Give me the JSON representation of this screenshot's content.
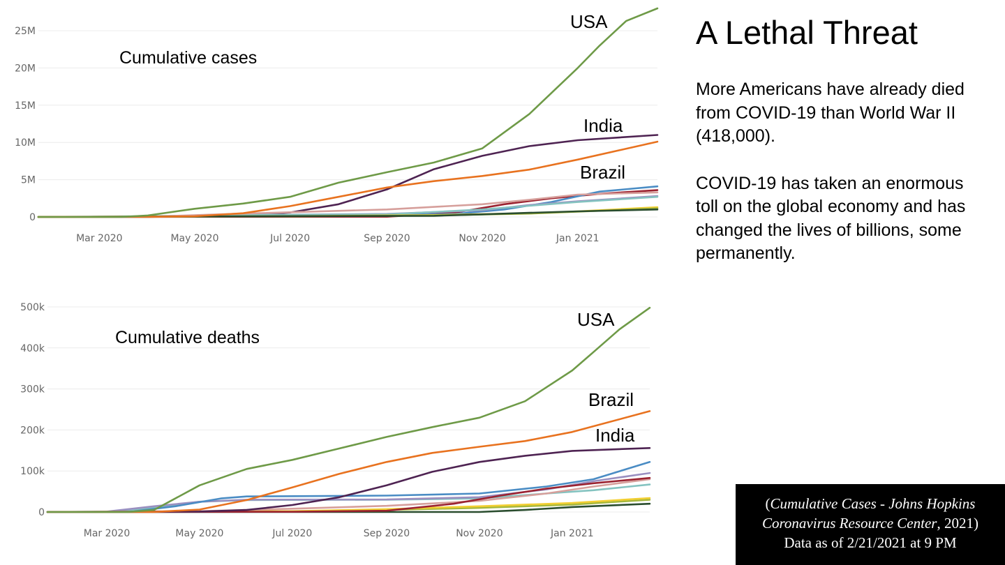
{
  "headline": "A Lethal Threat",
  "paragraph1": "More Americans have already died from COVID-19 than World War II (418,000).",
  "paragraph2": "COVID-19 has taken an enormous toll on the global economy and has changed the lives of billions, some permanently.",
  "source": {
    "line1_open": "(",
    "line1_italic": "Cumulative Cases - Johns Hopkins",
    "line2_italic": "Coronavirus Resource Center",
    "line2_rest": ", 2021)",
    "line3": "Data as of 2/21/2021 at 9 PM"
  },
  "colors": {
    "usa": "#6e9a47",
    "india": "#4e2352",
    "brazil": "#e8721f",
    "blue": "#4a8cc4",
    "pink": "#d69f9b",
    "purple": "#9a8fc0",
    "teal": "#84c3c0",
    "maroon": "#9b2230",
    "gold": "#f2cf32",
    "olive": "#a5b73c",
    "darkgreen": "#2a4d2e"
  },
  "chart_data": [
    {
      "type": "line",
      "title": "Cumulative cases",
      "x_ticks": [
        "Mar 2020",
        "May 2020",
        "Jul 2020",
        "Sep 2020",
        "Nov 2020",
        "Jan 2021"
      ],
      "x_tick_dates": [
        "2020-03-01",
        "2020-05-01",
        "2020-07-01",
        "2020-09-01",
        "2020-11-01",
        "2021-01-01"
      ],
      "xlim": [
        "2020-01-22",
        "2021-02-21"
      ],
      "y_ticks": [
        "0",
        "5M",
        "10M",
        "15M",
        "20M",
        "25M"
      ],
      "y_tick_values": [
        0,
        5000000,
        10000000,
        15000000,
        20000000,
        25000000
      ],
      "ylim": [
        0,
        28500000
      ],
      "grid": true,
      "annotations": [
        "USA",
        "India",
        "Brazil"
      ],
      "series": [
        {
          "color_key": "usa",
          "x": [
            "2020-01-22",
            "2020-03-15",
            "2020-04-01",
            "2020-05-01",
            "2020-06-01",
            "2020-07-01",
            "2020-08-01",
            "2020-09-01",
            "2020-10-01",
            "2020-11-01",
            "2020-12-01",
            "2021-01-01",
            "2021-01-15",
            "2021-02-01",
            "2021-02-21"
          ],
          "y": [
            0,
            3000,
            200000,
            1100000,
            1800000,
            2700000,
            4600000,
            6000000,
            7300000,
            9200000,
            13800000,
            20000000,
            23000000,
            26300000,
            28000000
          ]
        },
        {
          "color_key": "india",
          "x": [
            "2020-01-22",
            "2020-05-01",
            "2020-06-01",
            "2020-07-01",
            "2020-08-01",
            "2020-09-01",
            "2020-10-01",
            "2020-11-01",
            "2020-12-01",
            "2021-01-01",
            "2021-02-21"
          ],
          "y": [
            0,
            35000,
            200000,
            600000,
            1700000,
            3700000,
            6400000,
            8200000,
            9500000,
            10300000,
            11000000
          ]
        },
        {
          "color_key": "brazil",
          "x": [
            "2020-01-22",
            "2020-04-01",
            "2020-05-01",
            "2020-06-01",
            "2020-07-01",
            "2020-08-01",
            "2020-09-01",
            "2020-10-01",
            "2020-11-01",
            "2020-12-01",
            "2021-01-01",
            "2021-02-21"
          ],
          "y": [
            0,
            6000,
            90000,
            500000,
            1450000,
            2700000,
            3950000,
            4800000,
            5500000,
            6350000,
            7700000,
            10100000
          ]
        },
        {
          "color_key": "blue",
          "x": [
            "2020-01-22",
            "2020-04-01",
            "2020-06-01",
            "2020-09-01",
            "2020-10-15",
            "2020-11-15",
            "2020-12-15",
            "2021-01-15",
            "2021-02-21"
          ],
          "y": [
            0,
            3000,
            300000,
            300000,
            400000,
            1000000,
            2000000,
            3400000,
            4100000
          ]
        },
        {
          "color_key": "pink",
          "x": [
            "2020-01-22",
            "2020-04-01",
            "2020-06-01",
            "2020-09-01",
            "2020-11-01",
            "2020-12-01",
            "2021-01-01",
            "2021-02-21"
          ],
          "y": [
            0,
            30000,
            450000,
            1000000,
            1700000,
            2300000,
            3000000,
            3300000
          ]
        },
        {
          "color_key": "maroon",
          "x": [
            "2020-01-22",
            "2020-09-01",
            "2020-10-15",
            "2020-11-15",
            "2020-12-15",
            "2021-01-15",
            "2021-02-21"
          ],
          "y": [
            0,
            30000,
            600000,
            1700000,
            2500000,
            3100000,
            3600000
          ]
        },
        {
          "color_key": "purple",
          "x": [
            "2020-01-22",
            "2020-04-01",
            "2020-06-01",
            "2020-09-01",
            "2020-11-01",
            "2020-12-01",
            "2021-01-01",
            "2021-02-21"
          ],
          "y": [
            0,
            40000,
            250000,
            400000,
            900000,
            1600000,
            2100000,
            2800000
          ]
        },
        {
          "color_key": "teal",
          "x": [
            "2020-01-22",
            "2020-04-01",
            "2020-06-01",
            "2020-09-01",
            "2020-11-01",
            "2020-12-01",
            "2021-01-01",
            "2021-02-21"
          ],
          "y": [
            0,
            100000,
            250000,
            350000,
            1000000,
            1500000,
            2000000,
            2700000
          ]
        },
        {
          "color_key": "gold",
          "x": [
            "2020-01-22",
            "2020-07-01",
            "2020-10-01",
            "2020-12-01",
            "2021-01-01",
            "2021-02-21"
          ],
          "y": [
            0,
            100000,
            250000,
            500000,
            750000,
            1300000
          ]
        },
        {
          "color_key": "olive",
          "x": [
            "2020-01-22",
            "2020-07-01",
            "2020-10-01",
            "2020-12-01",
            "2021-01-01",
            "2021-02-21"
          ],
          "y": [
            0,
            80000,
            200000,
            450000,
            700000,
            1150000
          ]
        },
        {
          "color_key": "darkgreen",
          "x": [
            "2020-01-22",
            "2020-10-01",
            "2020-11-01",
            "2020-12-01",
            "2021-01-01",
            "2021-02-21"
          ],
          "y": [
            0,
            150000,
            350000,
            550000,
            750000,
            1000000
          ]
        }
      ]
    },
    {
      "type": "line",
      "title": "Cumulative deaths",
      "x_ticks": [
        "Mar 2020",
        "May 2020",
        "Jul 2020",
        "Sep 2020",
        "Nov 2020",
        "Jan 2021"
      ],
      "x_tick_dates": [
        "2020-03-01",
        "2020-05-01",
        "2020-07-01",
        "2020-09-01",
        "2020-11-01",
        "2021-01-01"
      ],
      "xlim": [
        "2020-01-22",
        "2021-02-21"
      ],
      "y_ticks": [
        "0",
        "100k",
        "200k",
        "300k",
        "400k",
        "500k"
      ],
      "y_tick_values": [
        0,
        100000,
        200000,
        300000,
        400000,
        500000
      ],
      "ylim": [
        0,
        515000
      ],
      "grid": true,
      "annotations": [
        "USA",
        "Brazil",
        "India"
      ],
      "series": [
        {
          "color_key": "usa",
          "x": [
            "2020-01-22",
            "2020-03-15",
            "2020-04-01",
            "2020-05-01",
            "2020-06-01",
            "2020-07-01",
            "2020-08-01",
            "2020-09-01",
            "2020-10-01",
            "2020-11-01",
            "2020-12-01",
            "2021-01-01",
            "2021-01-15",
            "2021-02-01",
            "2021-02-21"
          ],
          "y": [
            0,
            100,
            5000,
            65000,
            105000,
            127000,
            155000,
            183000,
            207000,
            230000,
            270000,
            345000,
            390000,
            445000,
            498000
          ]
        },
        {
          "color_key": "brazil",
          "x": [
            "2020-01-22",
            "2020-04-01",
            "2020-05-01",
            "2020-06-01",
            "2020-07-01",
            "2020-08-01",
            "2020-09-01",
            "2020-10-01",
            "2020-11-01",
            "2020-12-01",
            "2021-01-01",
            "2021-02-21"
          ],
          "y": [
            0,
            200,
            6000,
            29000,
            60000,
            93000,
            122000,
            144000,
            159000,
            173000,
            195000,
            246000
          ]
        },
        {
          "color_key": "india",
          "x": [
            "2020-01-22",
            "2020-05-01",
            "2020-06-01",
            "2020-07-01",
            "2020-08-01",
            "2020-09-01",
            "2020-10-01",
            "2020-11-01",
            "2020-12-01",
            "2021-01-01",
            "2021-02-21"
          ],
          "y": [
            0,
            1000,
            5000,
            17000,
            36000,
            65000,
            98000,
            122000,
            137000,
            149000,
            156000
          ]
        },
        {
          "color_key": "blue",
          "x": [
            "2020-01-22",
            "2020-03-15",
            "2020-04-15",
            "2020-05-15",
            "2020-06-01",
            "2020-09-01",
            "2020-11-01",
            "2020-12-15",
            "2021-01-15",
            "2021-02-21"
          ],
          "y": [
            0,
            0,
            14000,
            33000,
            38000,
            40000,
            45000,
            62000,
            80000,
            122000
          ]
        },
        {
          "color_key": "purple",
          "x": [
            "2020-01-22",
            "2020-03-01",
            "2020-04-01",
            "2020-05-01",
            "2020-06-01",
            "2020-09-01",
            "2020-11-01",
            "2020-12-15",
            "2021-01-15",
            "2021-02-21"
          ],
          "y": [
            0,
            1000,
            14000,
            25000,
            30000,
            30500,
            36000,
            55000,
            75000,
            95000
          ]
        },
        {
          "color_key": "teal",
          "x": [
            "2020-01-22",
            "2020-03-01",
            "2020-04-01",
            "2020-05-01",
            "2020-06-01",
            "2020-09-01",
            "2020-11-01",
            "2020-12-15",
            "2021-01-15",
            "2021-02-21"
          ],
          "y": [
            0,
            500,
            10000,
            25000,
            29000,
            30000,
            33000,
            45000,
            53000,
            67000
          ]
        },
        {
          "color_key": "pink",
          "x": [
            "2020-01-22",
            "2020-05-01",
            "2020-07-01",
            "2020-09-01",
            "2020-11-01",
            "2020-12-15",
            "2021-01-15",
            "2021-02-21"
          ],
          "y": [
            0,
            2000,
            8000,
            15000,
            27000,
            45000,
            62000,
            80000
          ]
        },
        {
          "color_key": "maroon",
          "x": [
            "2020-01-22",
            "2020-07-01",
            "2020-09-01",
            "2020-10-15",
            "2020-11-15",
            "2020-12-15",
            "2021-01-15",
            "2021-02-21"
          ],
          "y": [
            0,
            500,
            3000,
            20000,
            40000,
            57000,
            70000,
            83000
          ]
        },
        {
          "color_key": "gold",
          "x": [
            "2020-01-22",
            "2020-07-01",
            "2020-09-01",
            "2020-11-01",
            "2021-01-01",
            "2021-02-21"
          ],
          "y": [
            0,
            2000,
            7000,
            14000,
            22000,
            34000
          ]
        },
        {
          "color_key": "olive",
          "x": [
            "2020-01-22",
            "2020-07-01",
            "2020-09-01",
            "2020-11-01",
            "2021-01-01",
            "2021-02-21"
          ],
          "y": [
            0,
            1500,
            5000,
            10000,
            18000,
            30000
          ]
        },
        {
          "color_key": "darkgreen",
          "x": [
            "2020-01-22",
            "2020-11-01",
            "2020-12-01",
            "2021-01-01",
            "2021-02-21"
          ],
          "y": [
            0,
            0,
            5000,
            12000,
            20000
          ]
        }
      ]
    }
  ]
}
